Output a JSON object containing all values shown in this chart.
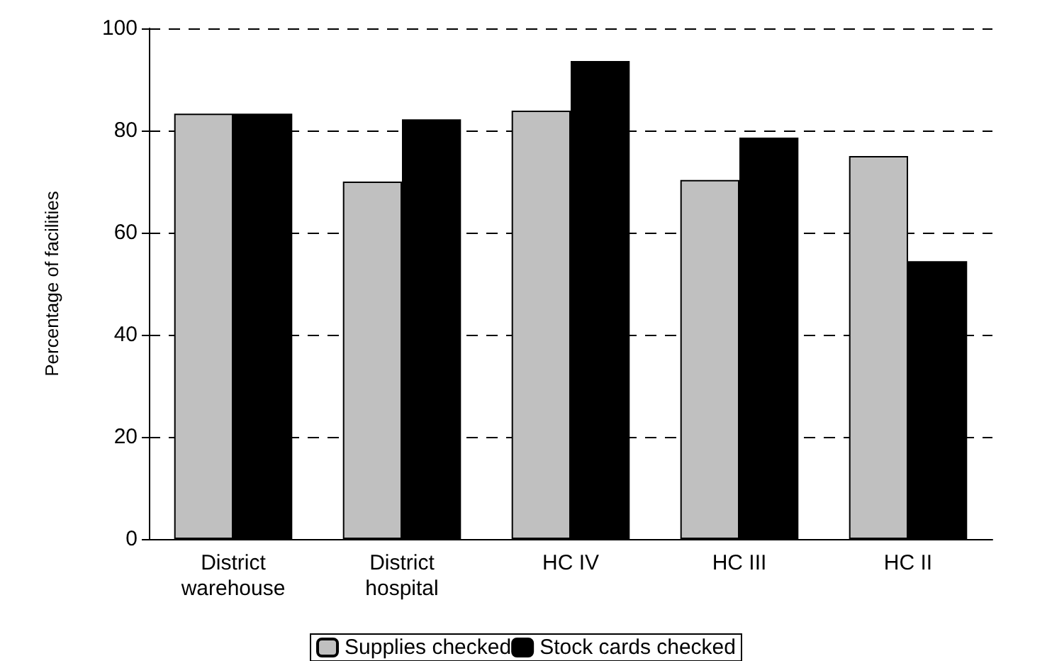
{
  "chart_data": {
    "type": "bar",
    "ylabel": "Percentage of facilities",
    "categories": [
      "District\nwarehouse",
      "District\nhospital",
      "HC IV",
      "HC III",
      "HC II"
    ],
    "series": [
      {
        "name": "Supplies checked",
        "color": "#c0c0c0",
        "values": [
          83.3,
          70,
          83.9,
          70.3,
          75
        ]
      },
      {
        "name": "Stock cards checked",
        "color": "#000000",
        "values": [
          83.3,
          82.2,
          93.6,
          78.6,
          54.4
        ]
      }
    ],
    "ylim": [
      0,
      100
    ],
    "yticks": [
      0,
      20,
      40,
      60,
      80,
      100
    ],
    "grid": "y",
    "legend": "bottom"
  }
}
